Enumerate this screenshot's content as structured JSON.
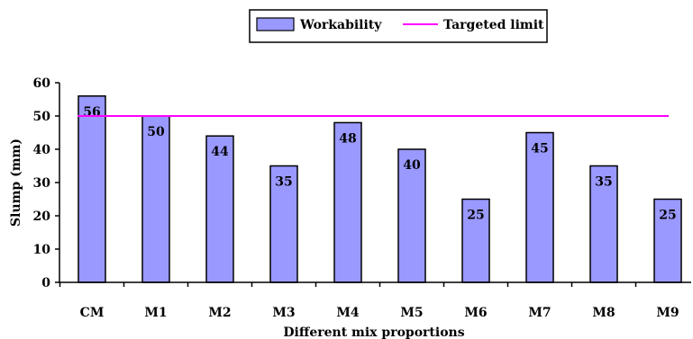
{
  "chart_data": {
    "type": "bar",
    "categories": [
      "CM",
      "M1",
      "M2",
      "M3",
      "M4",
      "M5",
      "M6",
      "M7",
      "M8",
      "M9"
    ],
    "series": [
      {
        "name": "Workability",
        "values": [
          56,
          50,
          44,
          35,
          48,
          40,
          25,
          45,
          35,
          25
        ],
        "color": "#9999ff"
      }
    ],
    "reference_line": {
      "name": "Targeted limit",
      "value": 50,
      "color": "#ff00ff"
    },
    "data_labels": [
      "56",
      "50",
      "44",
      "35",
      "48",
      "40",
      "25",
      "45",
      "35",
      "25"
    ],
    "xlabel": "Different mix proportions",
    "ylabel": "Slump (mm)",
    "ylim": [
      0,
      60
    ],
    "yticks": [
      0,
      10,
      20,
      30,
      40,
      50,
      60
    ],
    "legend_position": "top-right",
    "grid": false
  }
}
